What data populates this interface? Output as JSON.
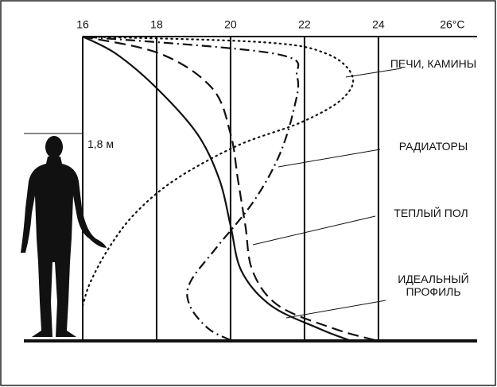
{
  "chart_data": {
    "type": "line",
    "xlim": [
      16,
      26.67
    ],
    "ylim": [
      0,
      2.65
    ],
    "xticks": [
      16,
      18,
      20,
      22,
      24,
      {
        "value": 26,
        "label": "26°C"
      }
    ],
    "annotations": [
      {
        "text": "1,8 м",
        "value": 1.8
      }
    ],
    "series": [
      {
        "name": "ПЕЧИ, КАМИНЫ",
        "style": "dotted",
        "color": "#111",
        "x": [
          16.0,
          16.2,
          16.7,
          17.4,
          18.5,
          20.2,
          21.9,
          23.0,
          23.3,
          22.6,
          20.9,
          16.0
        ],
        "values": [
          0.3,
          0.5,
          0.8,
          1.1,
          1.4,
          1.7,
          1.9,
          2.1,
          2.3,
          2.5,
          2.6,
          2.65
        ]
      },
      {
        "name": "РАДИАТОРЫ",
        "style": "dashdot",
        "color": "#111",
        "x": [
          20.0,
          19.4,
          18.9,
          18.9,
          19.6,
          20.6,
          21.3,
          21.7,
          21.8,
          21.2,
          16.0
        ],
        "values": [
          0,
          0.1,
          0.3,
          0.5,
          0.8,
          1.2,
          1.6,
          2.0,
          2.3,
          2.5,
          2.65
        ]
      },
      {
        "name": "ТЕПЛЫЙ ПОЛ",
        "style": "dashed",
        "color": "#111",
        "x": [
          23.9,
          22.8,
          21.3,
          20.6,
          20.4,
          20.2,
          20.0,
          19.5,
          18.1,
          16.0
        ],
        "values": [
          0,
          0.1,
          0.3,
          0.6,
          1.0,
          1.4,
          1.8,
          2.2,
          2.5,
          2.65
        ]
      },
      {
        "name": "ИДЕАЛЬНЫЙ ПРОФИЛЬ",
        "style": "solid",
        "color": "#111",
        "x": [
          23.2,
          22.4,
          21.1,
          20.3,
          20.0,
          19.7,
          19.1,
          18.0,
          16.9,
          16.0
        ],
        "values": [
          0,
          0.1,
          0.3,
          0.6,
          1.0,
          1.4,
          1.8,
          2.2,
          2.5,
          2.65
        ]
      }
    ]
  }
}
